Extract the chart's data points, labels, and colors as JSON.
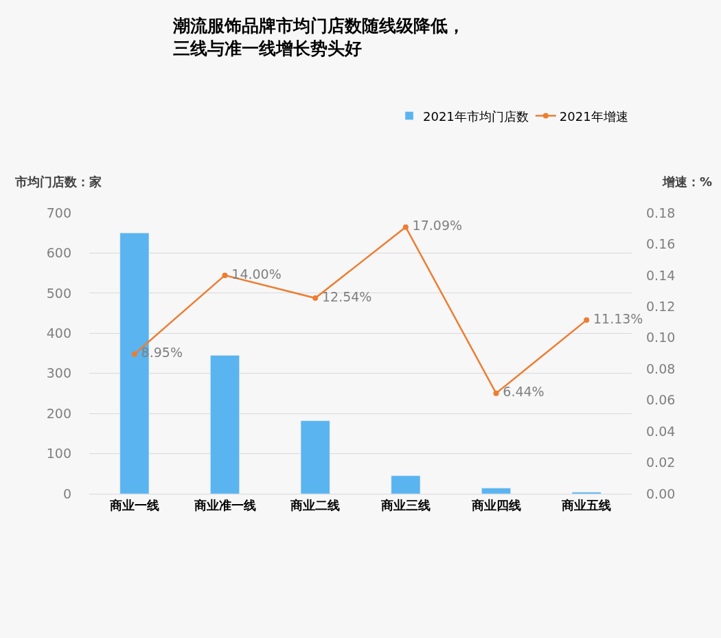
{
  "chart_data": {
    "type": "bar",
    "title": "潮流服饰品牌市均门店数随线级降低，三线与准一线增长势头好",
    "ylabel": "市均门店数：家",
    "y2label": "增速：%",
    "categories": [
      "商业一线",
      "商业准一线",
      "商业二线",
      "商业三线",
      "商业四线",
      "商业五线"
    ],
    "series": [
      {
        "name": "2021年市均门店数",
        "color": "#5ab4f0",
        "values": [
          650,
          345,
          182,
          45,
          14,
          4
        ]
      },
      {
        "name": "2021年增速",
        "type": "line",
        "axis": "y2",
        "color": "#ed7d31",
        "marker": "circle",
        "values": [
          0.0895,
          0.14,
          0.1254,
          0.1709,
          0.0644,
          0.1113
        ],
        "value_labels": [
          "8.95%",
          "14.00%",
          "12.54%",
          "17.09%",
          "6.44%",
          "11.13%"
        ]
      }
    ],
    "ylim": [
      0,
      700
    ],
    "yticks": [
      0,
      100,
      200,
      300,
      400,
      500,
      600,
      700
    ],
    "y2lim": [
      0,
      0.18
    ],
    "y2ticks": [
      {
        "value": 0,
        "label": "0.00"
      },
      {
        "value": 0.02,
        "label": "0.02"
      },
      {
        "value": 0.04,
        "label": "0.04"
      },
      {
        "value": 0.06,
        "label": "0.06"
      },
      {
        "value": 0.08,
        "label": "0.08"
      },
      {
        "value": 0.1,
        "label": "0.10"
      },
      {
        "value": 0.12,
        "label": "0.12"
      },
      {
        "value": 0.14,
        "label": "0.14"
      },
      {
        "value": 0.16,
        "label": "0.16"
      },
      {
        "value": 0.18,
        "label": "0.18"
      }
    ],
    "grid": "y",
    "legend": "top right"
  }
}
